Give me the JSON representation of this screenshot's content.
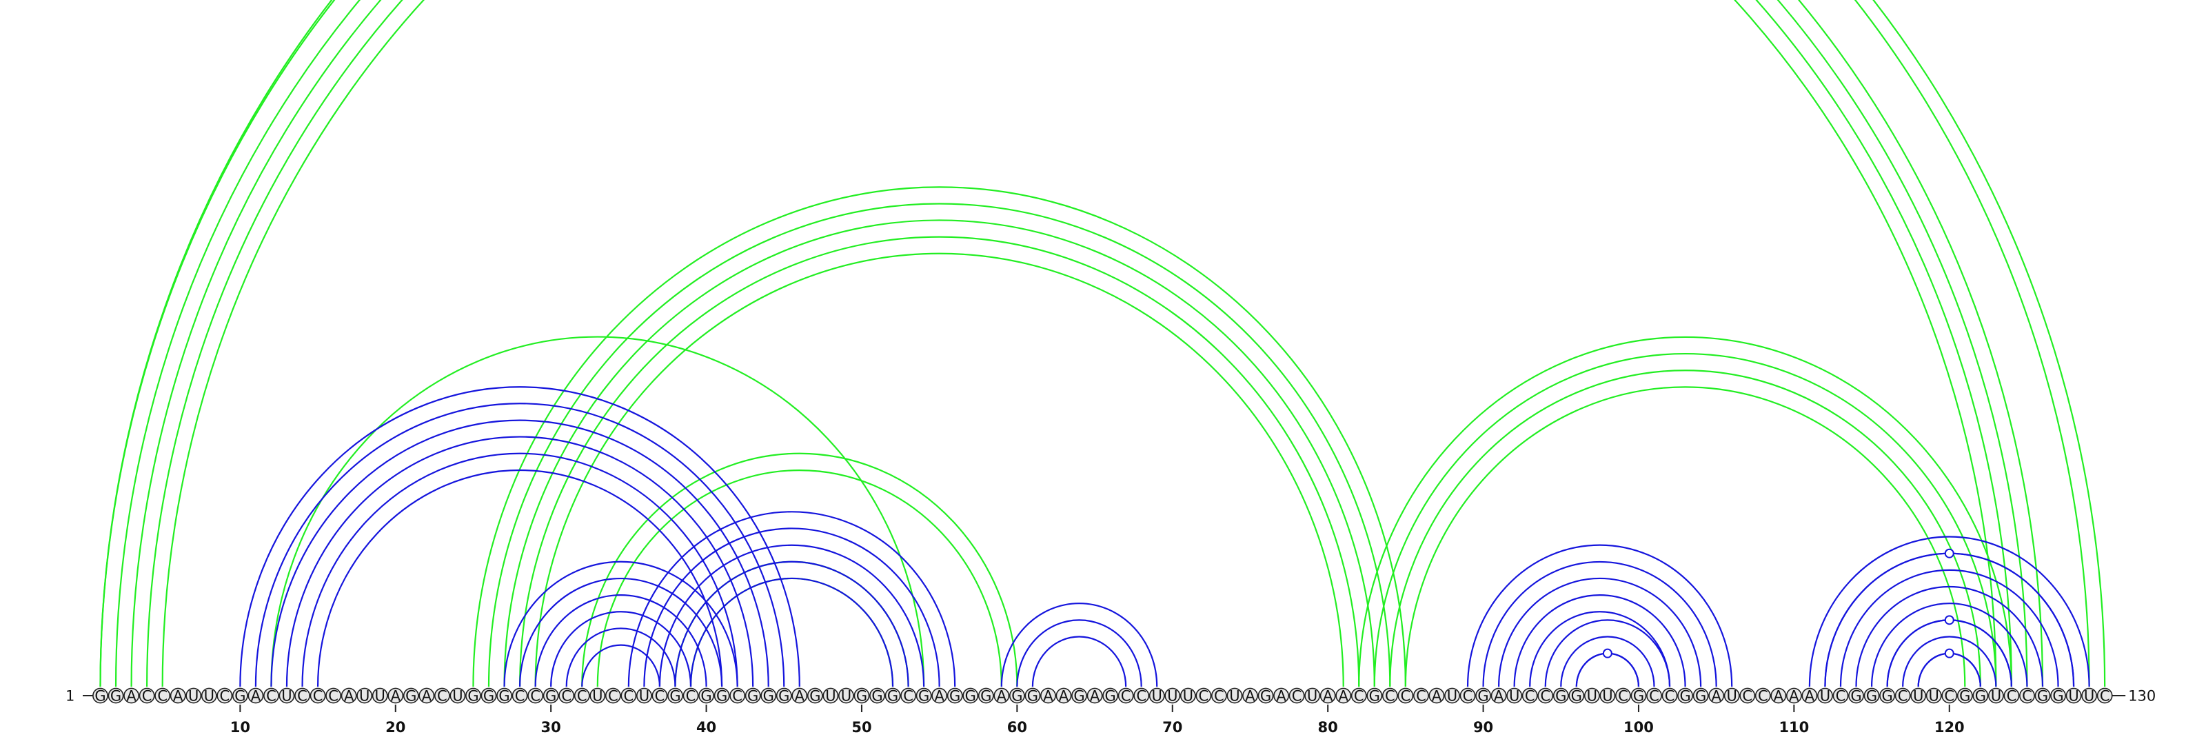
{
  "sequence": "GGACCAUUCGACUCCCAUUAGACUGGGCCGCCUCCUCGCGGCGGGAGUUGGGCGAGGGAGGAAGAGCCUUUCCUAGACUAACGCCCAUCGAUCCGGUUCGCCGGAUCCAAAUCGGGCUUCGGUCCGGUUC",
  "start_label": "1",
  "end_label": "130",
  "tick_labels": [
    "10",
    "20",
    "30",
    "40",
    "50",
    "60",
    "70",
    "80",
    "90",
    "100",
    "110",
    "120"
  ],
  "colors": {
    "pseudoknot_arc": "#22ee22",
    "nested_arc": "#1515dd",
    "nucleotide_fill": "#e8e8e8",
    "nucleotide_stroke": "#222222"
  },
  "green_helices": [
    {
      "i": 1,
      "j": 129,
      "len": 1
    },
    {
      "i": 2,
      "j": 126,
      "len": 4
    },
    {
      "i": 12,
      "j": 54,
      "len": 1
    },
    {
      "i": 25,
      "j": 85,
      "len": 5
    },
    {
      "i": 32,
      "j": 60,
      "len": 2
    },
    {
      "i": 38,
      "j": 53,
      "len": 2
    },
    {
      "i": 82,
      "j": 124,
      "len": 4
    }
  ],
  "blue_helices": [
    {
      "i": 10,
      "j": 46,
      "len": 6
    },
    {
      "i": 27,
      "j": 42,
      "len": 6
    },
    {
      "i": 35,
      "j": 56,
      "len": 5
    },
    {
      "i": 59,
      "j": 69,
      "len": 3
    },
    {
      "i": 89,
      "j": 106,
      "len": 5
    },
    {
      "i": 94,
      "j": 102,
      "len": 3
    },
    {
      "i": 111,
      "j": 129,
      "len": 4
    },
    {
      "i": 115,
      "j": 125,
      "len": 4
    }
  ],
  "noncanonical_markers": [
    {
      "i": 65,
      "j": 66,
      "arc": "green",
      "parent_i": 1,
      "parent_j": 130
    },
    {
      "i": 119,
      "j": 120,
      "arc": "blue",
      "parent_i": 112,
      "parent_j": 128
    },
    {
      "i": 119,
      "j": 120,
      "arc": "blue",
      "parent_i": 116,
      "parent_j": 124
    },
    {
      "i": 119,
      "j": 120,
      "arc": "blue",
      "parent_i": 118,
      "parent_j": 122
    },
    {
      "i": 98,
      "j": 99,
      "arc": "blue",
      "parent_i": 96,
      "parent_j": 100
    }
  ]
}
